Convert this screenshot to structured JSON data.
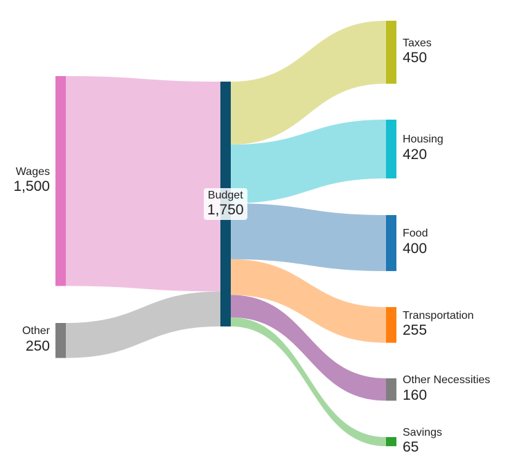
{
  "chart_data": {
    "type": "sankey",
    "nodes": [
      {
        "id": "wages",
        "name": "Wages",
        "value": 1500,
        "value_label": "1,500",
        "color": "#e377c2",
        "column": 0
      },
      {
        "id": "other",
        "name": "Other",
        "value": 250,
        "value_label": "250",
        "color": "#7f7f7f",
        "column": 0
      },
      {
        "id": "budget",
        "name": "Budget",
        "value": 1750,
        "value_label": "1,750",
        "color": "#0b4f6c",
        "column": 1
      },
      {
        "id": "taxes",
        "name": "Taxes",
        "value": 450,
        "value_label": "450",
        "color": "#bcbd22",
        "column": 2
      },
      {
        "id": "housing",
        "name": "Housing",
        "value": 420,
        "value_label": "420",
        "color": "#17becf",
        "column": 2
      },
      {
        "id": "food",
        "name": "Food",
        "value": 400,
        "value_label": "400",
        "color": "#1f77b4",
        "column": 2
      },
      {
        "id": "transportation",
        "name": "Transportation",
        "value": 255,
        "value_label": "255",
        "color": "#ff7f0e",
        "column": 2
      },
      {
        "id": "other_necessities",
        "name": "Other Necessities",
        "value": 160,
        "value_label": "160",
        "color": "#7f7f7f",
        "column": 2
      },
      {
        "id": "savings",
        "name": "Savings",
        "value": 65,
        "value_label": "65",
        "color": "#2ca02c",
        "column": 2
      }
    ],
    "links": [
      {
        "source": "wages",
        "target": "budget",
        "value": 1500,
        "color": "#f0c0e0"
      },
      {
        "source": "other",
        "target": "budget",
        "value": 250,
        "color": "#c7c7c7"
      },
      {
        "source": "budget",
        "target": "taxes",
        "value": 450,
        "color": "#e1e19c"
      },
      {
        "source": "budget",
        "target": "housing",
        "value": 420,
        "color": "#96e1e8"
      },
      {
        "source": "budget",
        "target": "food",
        "value": 400,
        "color": "#9ebfda"
      },
      {
        "source": "budget",
        "target": "transportation",
        "value": 255,
        "color": "#ffc694"
      },
      {
        "source": "budget",
        "target": "other_necessities",
        "value": 160,
        "color": "#bb8cbc"
      },
      {
        "source": "budget",
        "target": "savings",
        "value": 65,
        "color": "#a5d8a0"
      }
    ]
  }
}
